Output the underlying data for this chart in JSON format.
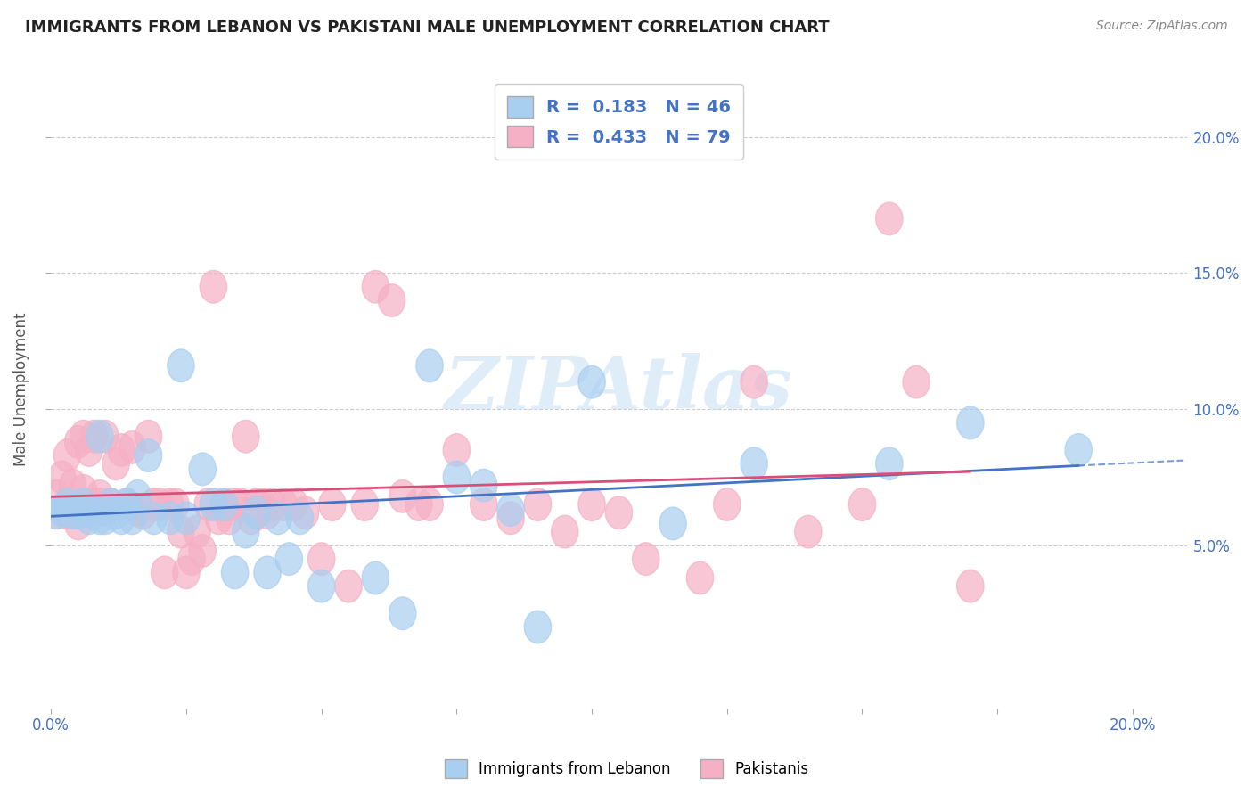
{
  "title": "IMMIGRANTS FROM LEBANON VS PAKISTANI MALE UNEMPLOYMENT CORRELATION CHART",
  "source": "Source: ZipAtlas.com",
  "ylabel": "Male Unemployment",
  "xlim": [
    0.0,
    0.21
  ],
  "ylim": [
    -0.01,
    0.225
  ],
  "yticks": [
    0.05,
    0.1,
    0.15,
    0.2
  ],
  "xticks": [
    0.0,
    0.025,
    0.05,
    0.075,
    0.1,
    0.125,
    0.15,
    0.175,
    0.2
  ],
  "xtick_labels_show": [
    "0.0%",
    "",
    "",
    "",
    "",
    "",
    "",
    "",
    "20.0%"
  ],
  "ytick_labels": [
    "5.0%",
    "10.0%",
    "15.0%",
    "20.0%"
  ],
  "legend_labels": [
    "Immigrants from Lebanon",
    "Pakistanis"
  ],
  "R_lebanon": 0.183,
  "N_lebanon": 46,
  "R_pakistan": 0.433,
  "N_pakistan": 79,
  "lebanon_color": "#a8cef0",
  "pakistan_color": "#f5b0c5",
  "lebanon_line_color": "#4472c4",
  "pakistan_line_color": "#d94f7a",
  "watermark": "ZIPAtlas",
  "background_color": "#ffffff",
  "grid_color": "#cccccc",
  "title_color": "#222222",
  "lebanon_scatter_x": [
    0.001,
    0.002,
    0.003,
    0.004,
    0.005,
    0.006,
    0.007,
    0.008,
    0.009,
    0.009,
    0.01,
    0.011,
    0.012,
    0.013,
    0.014,
    0.015,
    0.016,
    0.018,
    0.019,
    0.022,
    0.024,
    0.025,
    0.028,
    0.03,
    0.032,
    0.034,
    0.036,
    0.038,
    0.04,
    0.042,
    0.044,
    0.046,
    0.05,
    0.06,
    0.065,
    0.07,
    0.075,
    0.08,
    0.085,
    0.09,
    0.1,
    0.115,
    0.13,
    0.155,
    0.17,
    0.19
  ],
  "lebanon_scatter_y": [
    0.062,
    0.063,
    0.065,
    0.062,
    0.062,
    0.065,
    0.06,
    0.062,
    0.06,
    0.09,
    0.06,
    0.065,
    0.062,
    0.06,
    0.065,
    0.06,
    0.068,
    0.083,
    0.06,
    0.06,
    0.116,
    0.06,
    0.078,
    0.065,
    0.065,
    0.04,
    0.055,
    0.062,
    0.04,
    0.06,
    0.045,
    0.06,
    0.035,
    0.038,
    0.025,
    0.116,
    0.075,
    0.072,
    0.063,
    0.02,
    0.11,
    0.058,
    0.08,
    0.08,
    0.095,
    0.085
  ],
  "pakistan_scatter_x": [
    0.001,
    0.001,
    0.002,
    0.002,
    0.003,
    0.003,
    0.004,
    0.004,
    0.005,
    0.005,
    0.006,
    0.006,
    0.007,
    0.007,
    0.008,
    0.008,
    0.009,
    0.009,
    0.01,
    0.01,
    0.011,
    0.012,
    0.013,
    0.014,
    0.015,
    0.016,
    0.017,
    0.018,
    0.019,
    0.02,
    0.021,
    0.022,
    0.023,
    0.024,
    0.025,
    0.026,
    0.027,
    0.028,
    0.029,
    0.03,
    0.031,
    0.032,
    0.033,
    0.034,
    0.035,
    0.036,
    0.037,
    0.038,
    0.039,
    0.04,
    0.041,
    0.043,
    0.045,
    0.047,
    0.05,
    0.052,
    0.055,
    0.058,
    0.06,
    0.063,
    0.065,
    0.068,
    0.07,
    0.075,
    0.08,
    0.085,
    0.09,
    0.095,
    0.1,
    0.105,
    0.11,
    0.12,
    0.125,
    0.13,
    0.14,
    0.15,
    0.155,
    0.16,
    0.17
  ],
  "pakistan_scatter_y": [
    0.062,
    0.068,
    0.063,
    0.075,
    0.062,
    0.083,
    0.062,
    0.072,
    0.058,
    0.088,
    0.07,
    0.09,
    0.063,
    0.085,
    0.065,
    0.09,
    0.068,
    0.065,
    0.063,
    0.09,
    0.065,
    0.08,
    0.085,
    0.065,
    0.086,
    0.063,
    0.062,
    0.09,
    0.065,
    0.065,
    0.04,
    0.065,
    0.065,
    0.055,
    0.04,
    0.045,
    0.055,
    0.048,
    0.065,
    0.145,
    0.06,
    0.065,
    0.06,
    0.065,
    0.065,
    0.09,
    0.06,
    0.065,
    0.065,
    0.062,
    0.065,
    0.065,
    0.065,
    0.062,
    0.045,
    0.065,
    0.035,
    0.065,
    0.145,
    0.14,
    0.068,
    0.065,
    0.065,
    0.085,
    0.065,
    0.06,
    0.065,
    0.055,
    0.065,
    0.062,
    0.045,
    0.038,
    0.065,
    0.11,
    0.055,
    0.065,
    0.17,
    0.11,
    0.035
  ]
}
